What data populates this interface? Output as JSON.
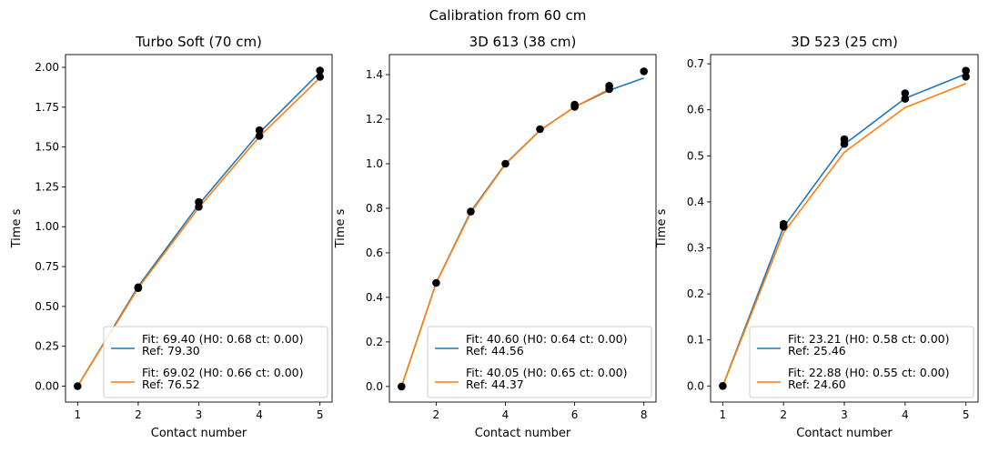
{
  "suptitle": "Calibration from 60 cm",
  "colors": {
    "fit": "#1f77b4",
    "ref": "#ff7f0e",
    "points": "#000000"
  },
  "chart_data": [
    {
      "type": "line",
      "title": "Turbo Soft (70 cm)",
      "xlabel": "Contact number",
      "ylabel": "Time s",
      "xlim": [
        0.8,
        5.2
      ],
      "ylim": [
        -0.1,
        2.08
      ],
      "xticks": [
        1,
        2,
        3,
        4,
        5
      ],
      "yticks": [
        0.0,
        0.25,
        0.5,
        0.75,
        1.0,
        1.25,
        1.5,
        1.75,
        2.0
      ],
      "ytick_labels": [
        "0.00",
        "0.25",
        "0.50",
        "0.75",
        "1.00",
        "1.25",
        "1.50",
        "1.75",
        "2.00"
      ],
      "points": [
        [
          1,
          0.0
        ],
        [
          2,
          0.62
        ],
        [
          2,
          0.615
        ],
        [
          3,
          1.155
        ],
        [
          3,
          1.125
        ],
        [
          4,
          1.605
        ],
        [
          4,
          1.57
        ],
        [
          5,
          1.98
        ],
        [
          5,
          1.94
        ]
      ],
      "series": [
        {
          "legend": [
            "Fit: 69.40 (H0: 0.68 ct: 0.00)",
            "Ref: 79.30"
          ],
          "x": [
            1,
            2,
            3,
            4,
            5
          ],
          "y": [
            0.0,
            0.625,
            1.14,
            1.59,
            1.97
          ]
        },
        {
          "legend": [
            "Fit: 69.02 (H0: 0.66 ct: 0.00)",
            "Ref: 76.52"
          ],
          "x": [
            1,
            2,
            3,
            4,
            5
          ],
          "y": [
            0.0,
            0.615,
            1.12,
            1.565,
            1.935
          ]
        }
      ],
      "legend_loc": "lower right",
      "grid": false
    },
    {
      "type": "line",
      "title": "3D 613 (38 cm)",
      "xlabel": "Contact number",
      "ylabel": "Time s",
      "xlim": [
        0.65,
        8.35
      ],
      "ylim": [
        -0.07,
        1.49
      ],
      "xticks": [
        2,
        4,
        6,
        8
      ],
      "yticks": [
        0.0,
        0.2,
        0.4,
        0.6,
        0.8,
        1.0,
        1.2,
        1.4
      ],
      "ytick_labels": [
        "0.0",
        "0.2",
        "0.4",
        "0.6",
        "0.8",
        "1.0",
        "1.2",
        "1.4"
      ],
      "points": [
        [
          1,
          0.0
        ],
        [
          2,
          0.465
        ],
        [
          3,
          0.785
        ],
        [
          4,
          1.0
        ],
        [
          5,
          1.155
        ],
        [
          6,
          1.265
        ],
        [
          6,
          1.255
        ],
        [
          7,
          1.35
        ],
        [
          7,
          1.335
        ],
        [
          8,
          1.415
        ]
      ],
      "series": [
        {
          "legend": [
            "Fit: 40.60 (H0: 0.64 ct: 0.00)",
            "Ref: 44.56"
          ],
          "x": [
            1,
            2,
            3,
            4,
            5,
            6,
            7,
            8
          ],
          "y": [
            0.0,
            0.465,
            0.785,
            1.0,
            1.15,
            1.255,
            1.33,
            1.385
          ]
        },
        {
          "legend": [
            "Fit: 40.05 (H0: 0.65 ct: 0.00)",
            "Ref: 44.37"
          ],
          "x": [
            1,
            2,
            3,
            4,
            5,
            6,
            7
          ],
          "y": [
            0.0,
            0.465,
            0.78,
            0.998,
            1.15,
            1.255,
            1.335
          ]
        }
      ],
      "legend_loc": "lower right",
      "grid": false
    },
    {
      "type": "line",
      "title": "3D 523 (25 cm)",
      "xlabel": "Contact number",
      "ylabel": "Time s",
      "xlim": [
        0.8,
        5.2
      ],
      "ylim": [
        -0.035,
        0.72
      ],
      "xticks": [
        1,
        2,
        3,
        4,
        5
      ],
      "yticks": [
        0.0,
        0.1,
        0.2,
        0.3,
        0.4,
        0.5,
        0.6,
        0.7
      ],
      "ytick_labels": [
        "0.0",
        "0.1",
        "0.2",
        "0.3",
        "0.4",
        "0.5",
        "0.6",
        "0.7"
      ],
      "points": [
        [
          1,
          0.0
        ],
        [
          2,
          0.352
        ],
        [
          2,
          0.346
        ],
        [
          3,
          0.536
        ],
        [
          3,
          0.526
        ],
        [
          4,
          0.636
        ],
        [
          4,
          0.624
        ],
        [
          5,
          0.685
        ],
        [
          5,
          0.672
        ]
      ],
      "series": [
        {
          "legend": [
            "Fit: 23.21 (H0: 0.58 ct: 0.00)",
            "Ref: 25.46"
          ],
          "x": [
            1,
            2,
            3,
            4,
            5
          ],
          "y": [
            0.0,
            0.345,
            0.525,
            0.625,
            0.678
          ]
        },
        {
          "legend": [
            "Fit: 22.88 (H0: 0.55 ct: 0.00)",
            "Ref: 24.60"
          ],
          "x": [
            1,
            2,
            3,
            4,
            5
          ],
          "y": [
            0.0,
            0.333,
            0.508,
            0.605,
            0.657
          ]
        }
      ],
      "legend_loc": "lower right",
      "grid": false
    }
  ]
}
